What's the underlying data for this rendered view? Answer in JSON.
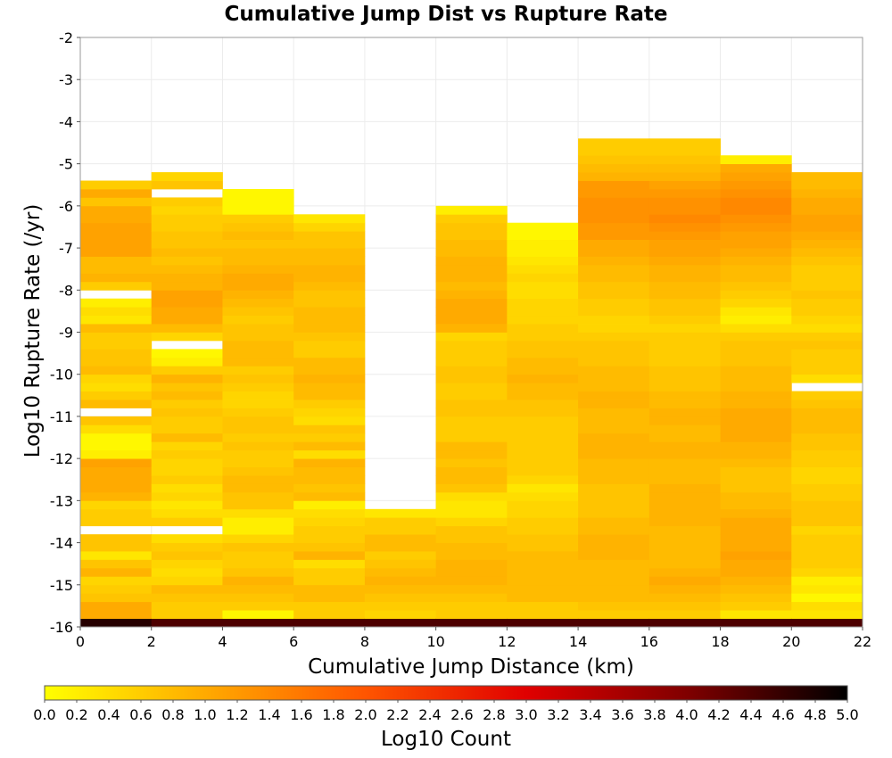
{
  "chart_data": {
    "type": "heatmap",
    "title": "Cumulative Jump Dist vs Rupture Rate",
    "xlabel": "Cumulative Jump Distance (km)",
    "ylabel": "Log10 Rupture Rate (/yr)",
    "xlim": [
      0,
      22
    ],
    "ylim": [
      -16,
      -2
    ],
    "xticks": [
      0,
      2,
      4,
      6,
      8,
      10,
      12,
      14,
      16,
      18,
      20,
      22
    ],
    "yticks": [
      -2,
      -3,
      -4,
      -5,
      -6,
      -7,
      -8,
      -9,
      -10,
      -11,
      -12,
      -13,
      -14,
      -15,
      -16
    ],
    "x_bin_width": 2,
    "y_bin_height": 0.2,
    "grid": true,
    "colorbar": {
      "label": "Log10 Count",
      "range": [
        0,
        5
      ],
      "ticks": [
        0.0,
        0.2,
        0.4,
        0.6,
        0.8,
        1.0,
        1.2,
        1.4,
        1.6,
        1.8,
        2.0,
        2.2,
        2.4,
        2.6,
        2.8,
        3.0,
        3.2,
        3.4,
        3.6,
        3.8,
        4.0,
        4.2,
        4.4,
        4.6,
        4.8,
        5.0
      ],
      "tick_labels": [
        "0.0",
        "0.2",
        "0.4",
        "0.6",
        "0.8",
        "1.0",
        "1.2",
        "1.4",
        "1.6",
        "1.8",
        "2.0",
        "2.2",
        "2.4",
        "2.6",
        "2.8",
        "3.0",
        "3.2",
        "3.4",
        "3.6",
        "3.8",
        "4.0",
        "4.2",
        "4.4",
        "4.6",
        "4.8",
        "5.0"
      ],
      "palette": [
        "#ffff00",
        "#ffaa00",
        "#ff5500",
        "#e00000",
        "#800000",
        "#000000"
      ]
    },
    "columns": [
      {
        "x": 1,
        "values": [
          4.7,
          1.0,
          1.0,
          0.7,
          0.6,
          0.5,
          0.9,
          0.7,
          0.3,
          0.7,
          0.7,
          null,
          0.6,
          0.6,
          0.5,
          0.9,
          1.0,
          1.0,
          1.0,
          1.1,
          0.2,
          0.1,
          0.1,
          0.4,
          0.7,
          null,
          0.8,
          0.6,
          0.4,
          0.5,
          0.8,
          0.7,
          0.7,
          0.6,
          0.6,
          0.8,
          0.3,
          0.4,
          0.2,
          null,
          0.6,
          0.9,
          0.8,
          0.8,
          1.1,
          1.1,
          1.1,
          1.1,
          1.0,
          1.0,
          0.7,
          1.0,
          0.6,
          null,
          null,
          null,
          null,
          null,
          null,
          null,
          null,
          null,
          null,
          null,
          null,
          null,
          null,
          null,
          null,
          null
        ]
      },
      {
        "x": 3,
        "values": [
          4.4,
          0.6,
          0.6,
          0.7,
          0.8,
          0.5,
          0.4,
          0.5,
          0.7,
          0.6,
          0.4,
          null,
          0.6,
          0.4,
          0.3,
          0.5,
          0.4,
          0.6,
          0.5,
          0.5,
          0.6,
          0.5,
          0.8,
          0.6,
          0.6,
          0.7,
          0.6,
          0.8,
          0.7,
          0.9,
          0.6,
          0.2,
          0.1,
          null,
          0.5,
          0.8,
          1.0,
          1.0,
          1.1,
          1.1,
          0.9,
          0.9,
          0.8,
          0.7,
          0.8,
          0.7,
          0.7,
          0.6,
          0.6,
          0.5,
          0.6,
          null,
          0.7,
          0.5,
          null,
          null,
          null,
          null,
          null,
          null,
          null,
          null,
          null,
          null,
          null,
          null,
          null,
          null,
          null,
          null
        ]
      },
      {
        "x": 5,
        "values": [
          4.4,
          0.1,
          0.6,
          0.7,
          0.8,
          0.9,
          0.7,
          0.6,
          0.6,
          0.7,
          0.5,
          0.2,
          0.2,
          0.4,
          0.7,
          0.7,
          0.8,
          0.8,
          0.7,
          0.6,
          0.6,
          0.7,
          0.6,
          0.7,
          0.7,
          0.6,
          0.5,
          0.5,
          0.6,
          0.7,
          0.6,
          0.8,
          0.8,
          0.8,
          0.7,
          0.7,
          0.6,
          0.7,
          0.8,
          0.9,
          1.0,
          1.0,
          0.9,
          0.8,
          0.8,
          0.7,
          0.8,
          0.7,
          0.6,
          0.1,
          0.1,
          0.1,
          null,
          null,
          null,
          null,
          null,
          null,
          null,
          null,
          null,
          null,
          null,
          null,
          null,
          null,
          null,
          null,
          null,
          null
        ]
      },
      {
        "x": 7,
        "values": [
          4.4,
          0.6,
          0.6,
          0.8,
          0.8,
          0.6,
          0.6,
          0.4,
          0.9,
          0.7,
          0.6,
          0.6,
          0.5,
          0.4,
          0.2,
          0.8,
          0.7,
          0.8,
          0.8,
          0.9,
          0.4,
          0.8,
          0.6,
          0.7,
          0.4,
          0.5,
          0.6,
          0.8,
          0.8,
          0.9,
          0.8,
          0.8,
          0.6,
          0.6,
          0.7,
          0.8,
          0.8,
          0.8,
          0.7,
          0.7,
          0.8,
          0.9,
          0.9,
          0.8,
          0.8,
          0.7,
          0.7,
          0.5,
          0.3,
          null,
          null,
          null,
          null,
          null,
          null,
          null,
          null,
          null,
          null,
          null,
          null,
          null,
          null,
          null,
          null,
          null,
          null,
          null,
          null,
          null
        ]
      },
      {
        "x": 9,
        "values": [
          4.4,
          0.5,
          0.6,
          0.7,
          0.8,
          0.9,
          0.8,
          0.7,
          0.6,
          0.8,
          0.8,
          0.6,
          0.6,
          0.3,
          null,
          null,
          null,
          null,
          null,
          null,
          null,
          null,
          null,
          null,
          null,
          null,
          null,
          null,
          null,
          null,
          null,
          null,
          null,
          null,
          null,
          null,
          null,
          null,
          null,
          null,
          null,
          null,
          null,
          null,
          null,
          null,
          null,
          null,
          null,
          null,
          null,
          null,
          null,
          null,
          null,
          null,
          null,
          null,
          null,
          null,
          null,
          null,
          null,
          null,
          null,
          null,
          null,
          null,
          null,
          null
        ]
      },
      {
        "x": 11,
        "values": [
          4.4,
          0.6,
          0.6,
          0.7,
          0.8,
          0.9,
          0.9,
          0.9,
          0.8,
          0.8,
          0.7,
          0.7,
          0.5,
          0.3,
          0.3,
          0.4,
          0.7,
          0.8,
          0.8,
          0.7,
          0.8,
          0.8,
          0.6,
          0.6,
          0.6,
          0.7,
          0.7,
          0.6,
          0.6,
          0.7,
          0.7,
          0.6,
          0.6,
          0.6,
          0.5,
          0.9,
          1.0,
          1.0,
          1.0,
          0.9,
          0.8,
          0.9,
          0.9,
          0.9,
          0.8,
          0.8,
          0.7,
          0.7,
          0.6,
          0.2,
          null,
          null,
          null,
          null,
          null,
          null,
          null,
          null,
          null,
          null,
          null,
          null,
          null,
          null,
          null,
          null,
          null,
          null,
          null,
          null
        ]
      },
      {
        "x": 13,
        "values": [
          4.4,
          0.6,
          0.6,
          0.8,
          0.8,
          0.8,
          0.8,
          0.8,
          0.8,
          0.7,
          0.7,
          0.6,
          0.6,
          0.5,
          0.5,
          0.4,
          0.3,
          0.5,
          0.6,
          0.6,
          0.6,
          0.6,
          0.6,
          0.6,
          0.6,
          0.7,
          0.7,
          0.8,
          0.8,
          0.9,
          0.8,
          0.8,
          0.7,
          0.7,
          0.6,
          0.6,
          0.5,
          0.5,
          0.5,
          0.4,
          0.4,
          0.5,
          0.4,
          0.3,
          0.2,
          0.2,
          0.1,
          0.1,
          null,
          null,
          null,
          null,
          null,
          null,
          null,
          null,
          null,
          null,
          null,
          null,
          null,
          null,
          null,
          null,
          null,
          null,
          null,
          null,
          null,
          null
        ]
      },
      {
        "x": 15,
        "values": [
          4.4,
          0.6,
          0.7,
          0.8,
          0.8,
          0.8,
          0.8,
          0.8,
          0.9,
          0.9,
          0.9,
          0.8,
          0.8,
          0.7,
          0.7,
          0.7,
          0.7,
          0.8,
          0.8,
          0.8,
          0.9,
          0.9,
          0.9,
          0.8,
          0.8,
          0.8,
          0.9,
          0.9,
          0.8,
          0.8,
          0.8,
          0.7,
          0.7,
          0.7,
          0.6,
          0.5,
          0.5,
          0.6,
          0.6,
          0.7,
          0.7,
          0.8,
          0.8,
          0.9,
          1.0,
          1.0,
          1.2,
          1.2,
          1.3,
          1.3,
          1.3,
          1.2,
          1.2,
          0.9,
          0.8,
          0.7,
          0.6,
          0.6,
          null,
          null,
          null,
          null,
          null,
          null,
          null,
          null,
          null,
          null,
          null,
          null
        ]
      },
      {
        "x": 17,
        "values": [
          4.4,
          0.6,
          0.7,
          0.8,
          0.9,
          1.0,
          0.9,
          0.8,
          0.8,
          0.8,
          0.8,
          0.8,
          0.9,
          0.9,
          0.9,
          0.9,
          0.9,
          0.8,
          0.8,
          0.8,
          0.9,
          0.9,
          0.8,
          0.8,
          0.9,
          0.9,
          0.8,
          0.8,
          0.7,
          0.7,
          0.7,
          0.6,
          0.6,
          0.6,
          0.6,
          0.5,
          0.6,
          0.7,
          0.7,
          0.8,
          0.8,
          0.9,
          0.9,
          1.0,
          1.1,
          1.1,
          1.2,
          1.3,
          1.4,
          1.3,
          1.3,
          1.2,
          1.1,
          0.9,
          0.8,
          0.7,
          0.6,
          0.6,
          null,
          null,
          null,
          null,
          null,
          null,
          null,
          null,
          null,
          null,
          null,
          null
        ]
      },
      {
        "x": 19,
        "values": [
          4.4,
          0.3,
          0.6,
          0.7,
          0.8,
          0.9,
          1.0,
          1.0,
          1.1,
          1.0,
          1.0,
          1.0,
          1.0,
          0.9,
          0.8,
          0.8,
          0.7,
          0.7,
          0.7,
          0.8,
          0.9,
          0.9,
          1.0,
          1.0,
          1.0,
          1.0,
          0.9,
          0.9,
          0.8,
          0.8,
          0.8,
          0.7,
          0.7,
          0.7,
          0.6,
          0.4,
          0.2,
          0.3,
          0.5,
          0.6,
          0.7,
          0.8,
          0.8,
          0.9,
          1.0,
          1.1,
          1.1,
          1.2,
          1.3,
          1.4,
          1.4,
          1.3,
          1.2,
          1.1,
          1.0,
          0.2,
          null,
          null,
          null,
          null,
          null,
          null,
          null,
          null,
          null,
          null,
          null,
          null,
          null,
          null
        ]
      },
      {
        "x": 21,
        "values": [
          4.4,
          0.3,
          0.4,
          0.1,
          0.3,
          0.2,
          0.5,
          0.6,
          0.6,
          0.6,
          0.6,
          0.5,
          0.7,
          0.7,
          0.7,
          0.6,
          0.6,
          0.5,
          0.5,
          0.6,
          0.6,
          0.7,
          0.7,
          0.8,
          0.8,
          0.8,
          0.7,
          0.6,
          null,
          0.4,
          0.6,
          0.6,
          0.6,
          0.7,
          0.6,
          0.4,
          0.5,
          0.6,
          0.6,
          0.7,
          0.6,
          0.6,
          0.6,
          0.7,
          0.8,
          0.9,
          1.0,
          1.1,
          1.1,
          1.0,
          1.0,
          0.9,
          0.8,
          0.8,
          null,
          null,
          null,
          null,
          null,
          null,
          null,
          null,
          null,
          null,
          null,
          null,
          null,
          null,
          null,
          null
        ]
      }
    ]
  }
}
